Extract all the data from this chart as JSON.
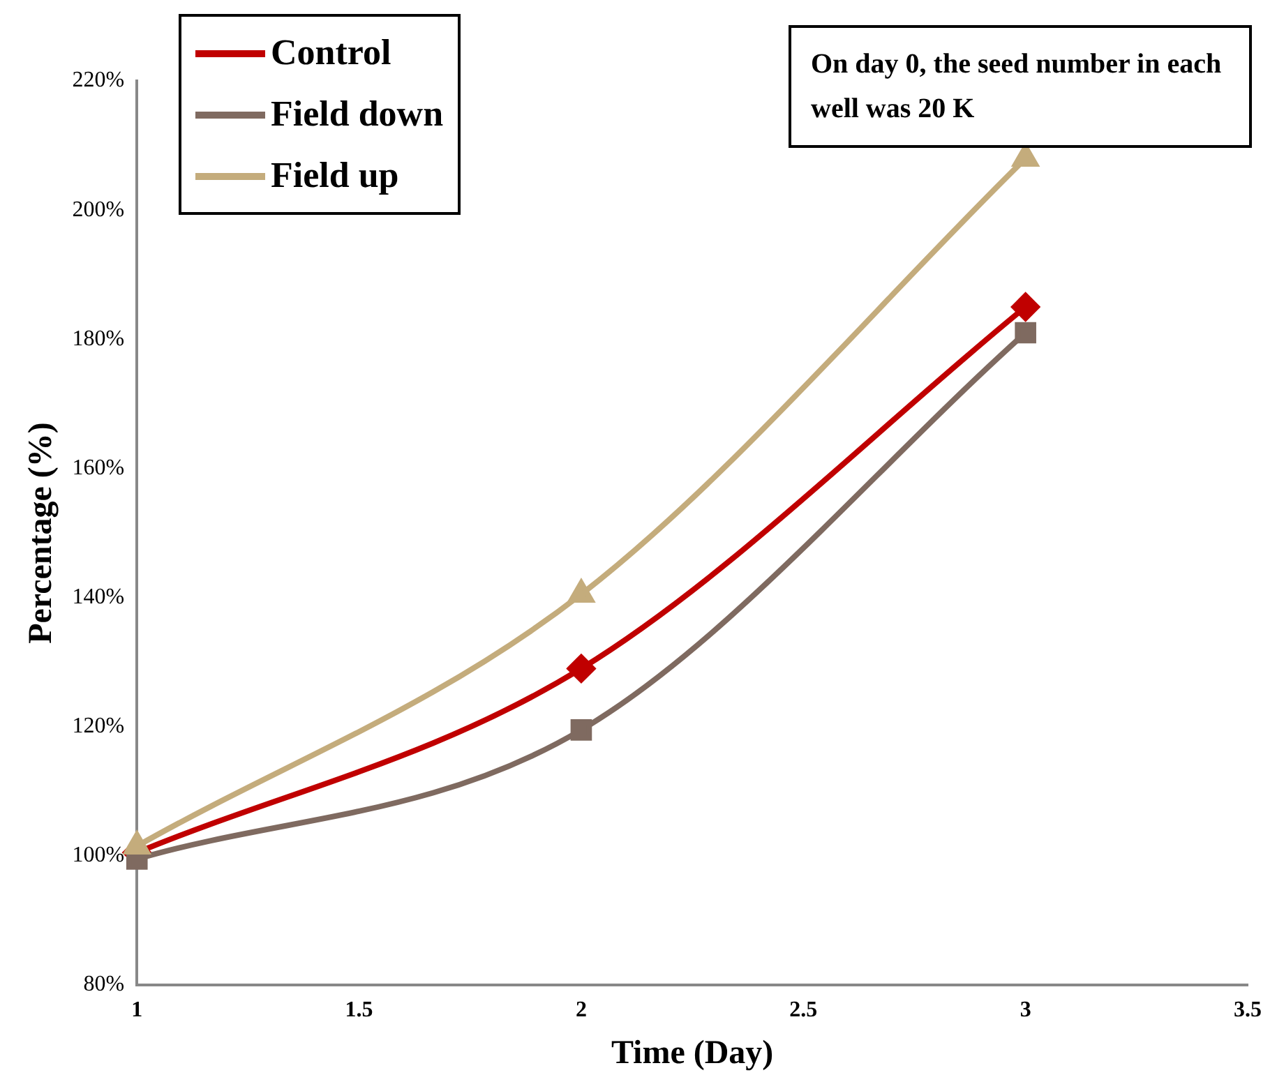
{
  "chart_data": {
    "type": "line",
    "xlabel": "Time (Day)",
    "ylabel": "Percentage (%)",
    "x": [
      1,
      2,
      3
    ],
    "series": [
      {
        "name": "Control",
        "color": "#c00000",
        "values": [
          100.5,
          129,
          185
        ],
        "marker": "diamond"
      },
      {
        "name": "Field down",
        "color": "#7f6a60",
        "values": [
          99.5,
          119.5,
          181
        ],
        "marker": "square"
      },
      {
        "name": "Field up",
        "color": "#c4ac7c",
        "values": [
          101.5,
          140.5,
          208
        ],
        "marker": "triangle"
      }
    ],
    "xlim": [
      1,
      3.5
    ],
    "xticks": [
      1,
      1.5,
      2,
      2.5,
      3,
      3.5
    ],
    "ylim": [
      80,
      220
    ],
    "yticks": [
      {
        "value": 80,
        "label": "80%"
      },
      {
        "value": 100,
        "label": "100%"
      },
      {
        "value": 120,
        "label": "120%"
      },
      {
        "value": 140,
        "label": "140%"
      },
      {
        "value": 160,
        "label": "160%"
      },
      {
        "value": 180,
        "label": "180%"
      },
      {
        "value": 200,
        "label": "200%"
      },
      {
        "value": 220,
        "label": "220%"
      }
    ],
    "grid": false,
    "legend": "top left",
    "annotations": [
      "On day 0, the seed number in each well was 20 K"
    ]
  }
}
